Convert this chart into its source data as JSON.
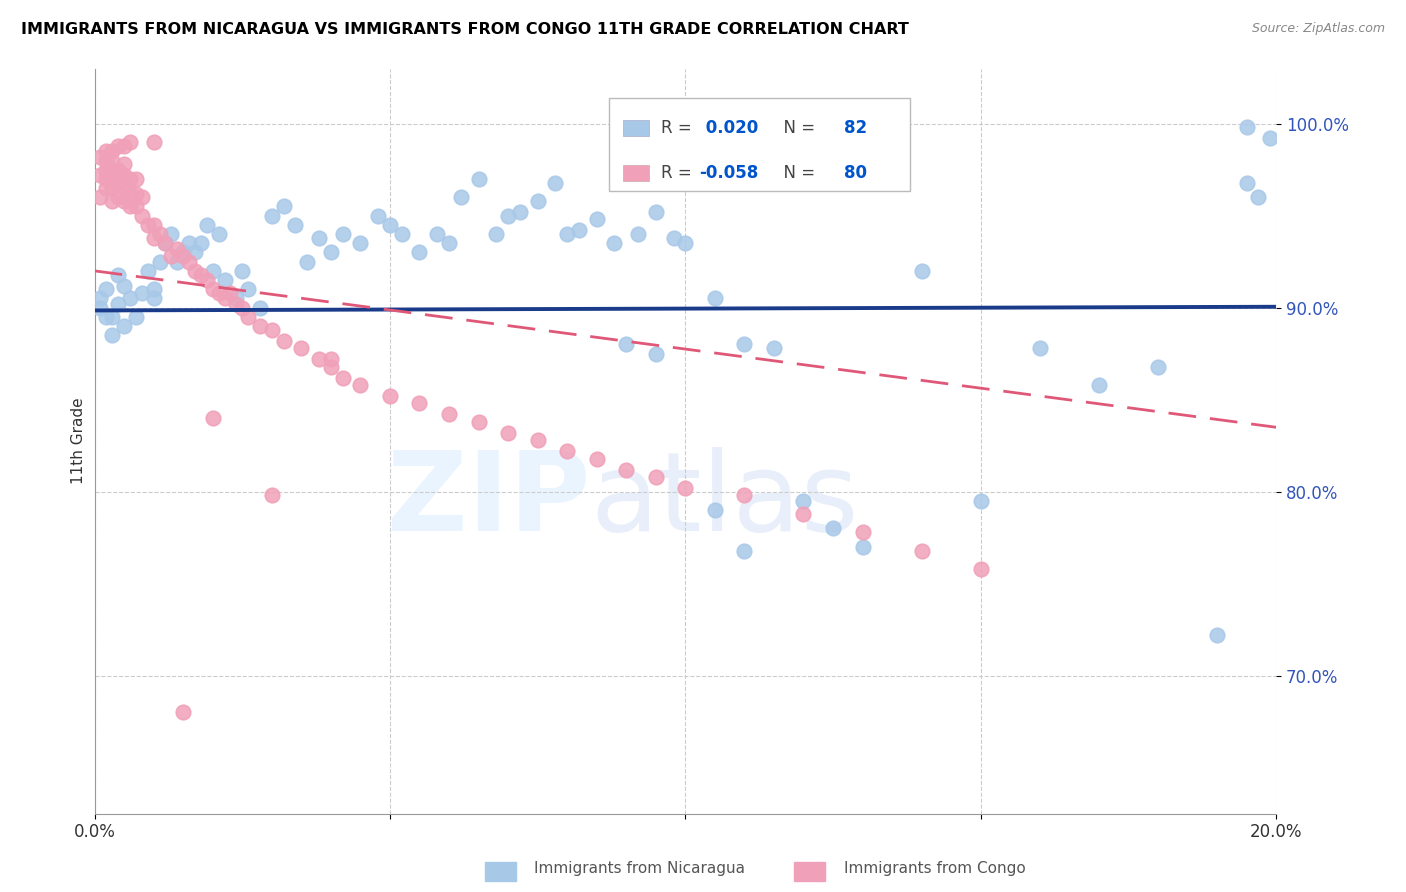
{
  "title": "IMMIGRANTS FROM NICARAGUA VS IMMIGRANTS FROM CONGO 11TH GRADE CORRELATION CHART",
  "source": "Source: ZipAtlas.com",
  "ylabel": "11th Grade",
  "r_nicaragua": 0.02,
  "n_nicaragua": 82,
  "r_congo": -0.058,
  "n_congo": 80,
  "x_min": 0.0,
  "x_max": 0.2,
  "y_min": 0.625,
  "y_max": 1.03,
  "yticks": [
    0.7,
    0.8,
    0.9,
    1.0
  ],
  "ytick_labels": [
    "70.0%",
    "80.0%",
    "90.0%",
    "100.0%"
  ],
  "xticks": [
    0.0,
    0.05,
    0.1,
    0.15,
    0.2
  ],
  "xtick_labels": [
    "0.0%",
    "",
    "",
    "",
    "20.0%"
  ],
  "color_nicaragua": "#a8c8e8",
  "color_congo": "#f0a0b8",
  "line_color_nicaragua": "#1a3a8a",
  "line_color_congo": "#e05878",
  "nicaragua_x": [
    0.001,
    0.001,
    0.002,
    0.002,
    0.003,
    0.003,
    0.004,
    0.004,
    0.005,
    0.005,
    0.006,
    0.007,
    0.008,
    0.009,
    0.01,
    0.01,
    0.011,
    0.012,
    0.013,
    0.014,
    0.015,
    0.016,
    0.017,
    0.018,
    0.019,
    0.02,
    0.021,
    0.022,
    0.024,
    0.025,
    0.026,
    0.028,
    0.03,
    0.032,
    0.034,
    0.036,
    0.038,
    0.04,
    0.042,
    0.045,
    0.048,
    0.05,
    0.052,
    0.055,
    0.058,
    0.06,
    0.062,
    0.065,
    0.068,
    0.07,
    0.072,
    0.075,
    0.078,
    0.08,
    0.082,
    0.085,
    0.088,
    0.09,
    0.092,
    0.095,
    0.098,
    0.1,
    0.105,
    0.11,
    0.115,
    0.12,
    0.125,
    0.13,
    0.14,
    0.15,
    0.16,
    0.17,
    0.18,
    0.19,
    0.195,
    0.195,
    0.197,
    0.199,
    0.105,
    0.11,
    0.09,
    0.095
  ],
  "nicaragua_y": [
    0.9,
    0.905,
    0.895,
    0.91,
    0.885,
    0.895,
    0.902,
    0.918,
    0.89,
    0.912,
    0.905,
    0.895,
    0.908,
    0.92,
    0.905,
    0.91,
    0.925,
    0.935,
    0.94,
    0.925,
    0.93,
    0.935,
    0.93,
    0.935,
    0.945,
    0.92,
    0.94,
    0.915,
    0.905,
    0.92,
    0.91,
    0.9,
    0.95,
    0.955,
    0.945,
    0.925,
    0.938,
    0.93,
    0.94,
    0.935,
    0.95,
    0.945,
    0.94,
    0.93,
    0.94,
    0.935,
    0.96,
    0.97,
    0.94,
    0.95,
    0.952,
    0.958,
    0.968,
    0.94,
    0.942,
    0.948,
    0.935,
    0.982,
    0.94,
    0.952,
    0.938,
    0.935,
    0.905,
    0.88,
    0.878,
    0.795,
    0.78,
    0.77,
    0.92,
    0.795,
    0.878,
    0.858,
    0.868,
    0.722,
    0.968,
    0.998,
    0.96,
    0.992,
    0.79,
    0.768,
    0.88,
    0.875
  ],
  "congo_x": [
    0.001,
    0.001,
    0.001,
    0.002,
    0.002,
    0.002,
    0.002,
    0.003,
    0.003,
    0.003,
    0.003,
    0.003,
    0.004,
    0.004,
    0.004,
    0.005,
    0.005,
    0.005,
    0.005,
    0.006,
    0.006,
    0.006,
    0.007,
    0.007,
    0.007,
    0.008,
    0.008,
    0.009,
    0.01,
    0.01,
    0.011,
    0.012,
    0.013,
    0.014,
    0.015,
    0.016,
    0.017,
    0.018,
    0.019,
    0.02,
    0.021,
    0.022,
    0.023,
    0.024,
    0.025,
    0.026,
    0.028,
    0.03,
    0.032,
    0.035,
    0.038,
    0.04,
    0.042,
    0.045,
    0.05,
    0.055,
    0.06,
    0.065,
    0.07,
    0.075,
    0.08,
    0.085,
    0.09,
    0.095,
    0.1,
    0.11,
    0.12,
    0.13,
    0.14,
    0.15,
    0.002,
    0.003,
    0.004,
    0.005,
    0.006,
    0.01,
    0.015,
    0.02,
    0.03,
    0.04
  ],
  "congo_y": [
    0.96,
    0.972,
    0.982,
    0.965,
    0.97,
    0.975,
    0.98,
    0.958,
    0.965,
    0.97,
    0.975,
    0.98,
    0.96,
    0.968,
    0.975,
    0.958,
    0.965,
    0.972,
    0.978,
    0.955,
    0.962,
    0.97,
    0.955,
    0.962,
    0.97,
    0.95,
    0.96,
    0.945,
    0.938,
    0.945,
    0.94,
    0.935,
    0.928,
    0.932,
    0.928,
    0.925,
    0.92,
    0.918,
    0.915,
    0.91,
    0.908,
    0.905,
    0.908,
    0.902,
    0.9,
    0.895,
    0.89,
    0.888,
    0.882,
    0.878,
    0.872,
    0.868,
    0.862,
    0.858,
    0.852,
    0.848,
    0.842,
    0.838,
    0.832,
    0.828,
    0.822,
    0.818,
    0.812,
    0.808,
    0.802,
    0.798,
    0.788,
    0.778,
    0.768,
    0.758,
    0.985,
    0.985,
    0.988,
    0.988,
    0.99,
    0.99,
    0.68,
    0.84,
    0.798,
    0.872
  ]
}
